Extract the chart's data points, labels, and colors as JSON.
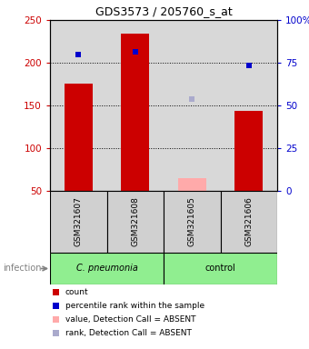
{
  "title": "GDS3573 / 205760_s_at",
  "samples": [
    "GSM321607",
    "GSM321608",
    "GSM321605",
    "GSM321606"
  ],
  "counts": [
    175,
    234,
    null,
    144
  ],
  "counts_absent": [
    null,
    null,
    65,
    null
  ],
  "percentile_present": [
    210,
    213,
    null,
    197
  ],
  "percentile_absent": [
    null,
    null,
    157,
    null
  ],
  "ylim_left": [
    50,
    250
  ],
  "yticks_left": [
    50,
    100,
    150,
    200,
    250
  ],
  "yticks_right": [
    0,
    25,
    50,
    75,
    100
  ],
  "ytick_labels_right": [
    "0",
    "25",
    "50",
    "75",
    "100%"
  ],
  "hlines": [
    100,
    150,
    200
  ],
  "group_label": "infection",
  "group_1_label": "C. pneumonia",
  "group_2_label": "control",
  "legend_items": [
    "count",
    "percentile rank within the sample",
    "value, Detection Call = ABSENT",
    "rank, Detection Call = ABSENT"
  ],
  "legend_colors": [
    "#cc0000",
    "#0000cc",
    "#ffaaaa",
    "#aaaacc"
  ],
  "bar_width": 0.5,
  "plot_bg_color": "#d8d8d8",
  "sample_bg_color": "#d0d0d0",
  "group_bg_color": "#90ee90"
}
